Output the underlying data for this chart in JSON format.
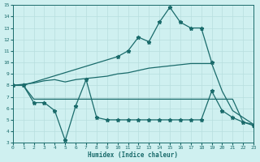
{
  "xlabel": "Humidex (Indice chaleur)",
  "bg_color": "#cff0f0",
  "line_color": "#1a6b6b",
  "grid_color": "#b8dede",
  "ylim": [
    3,
    15
  ],
  "xlim": [
    0,
    23
  ],
  "line1_x": [
    0,
    1,
    10,
    11,
    12,
    13,
    14,
    15,
    16,
    17,
    18,
    19
  ],
  "line1_y": [
    8.0,
    8.0,
    10.5,
    11.0,
    12.2,
    11.8,
    13.5,
    14.8,
    13.5,
    13.0,
    13.0,
    10.0
  ],
  "line2_x": [
    0,
    1,
    2,
    3,
    4,
    5,
    6,
    7,
    8,
    9,
    10,
    11,
    12,
    13,
    14,
    15,
    16,
    17,
    18,
    19,
    20,
    21,
    22,
    23
  ],
  "line2_y": [
    8.0,
    8.1,
    8.2,
    8.4,
    8.5,
    8.3,
    8.5,
    8.6,
    8.7,
    8.8,
    9.0,
    9.1,
    9.3,
    9.5,
    9.6,
    9.7,
    9.8,
    9.9,
    9.9,
    9.9,
    7.5,
    5.8,
    5.2,
    4.6
  ],
  "line3_x": [
    0,
    1,
    2,
    3,
    4,
    5,
    6,
    7,
    8,
    9,
    10,
    11,
    12,
    13,
    14,
    15,
    16,
    17,
    18,
    19,
    20,
    21,
    22,
    23
  ],
  "line3_y": [
    8.0,
    8.0,
    6.5,
    6.5,
    5.8,
    3.2,
    6.2,
    8.5,
    5.2,
    5.0,
    5.0,
    5.0,
    5.0,
    5.0,
    5.0,
    5.0,
    5.0,
    5.0,
    5.0,
    7.5,
    5.8,
    5.2,
    4.8,
    4.5
  ],
  "line4_x": [
    0,
    1,
    2,
    3,
    4,
    5,
    6,
    7,
    8,
    9,
    10,
    11,
    12,
    13,
    14,
    15,
    16,
    17,
    18,
    19,
    20,
    21,
    22,
    23
  ],
  "line4_y": [
    8.0,
    8.0,
    6.8,
    6.8,
    6.8,
    6.8,
    6.8,
    6.8,
    6.8,
    6.8,
    6.8,
    6.8,
    6.8,
    6.8,
    6.8,
    6.8,
    6.8,
    6.8,
    6.8,
    6.8,
    6.8,
    6.8,
    4.8,
    4.6
  ]
}
